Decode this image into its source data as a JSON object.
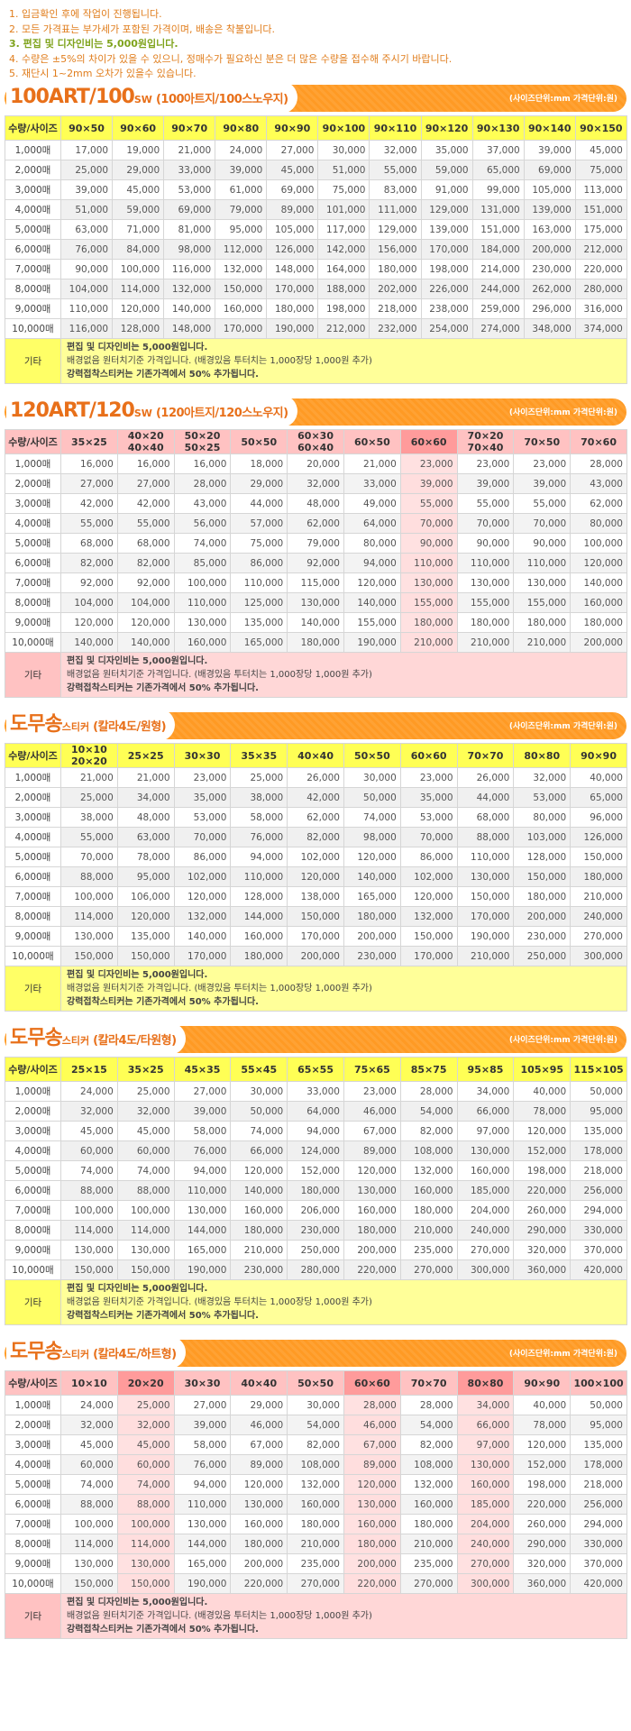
{
  "notes": [
    "1. 입금확인 후에 작업이 진행됩니다.",
    "2. 모든 가격표는 부가세가 포함된 가격이며, 배송은 착불입니다.",
    "3. 편집 및 디자인비는 5,000원입니다.",
    "4. 수량은 ±5%의 차이가 있을 수 있으니, 정매수가 필요하신 분은 더 많은 수량을 접수해 주시기 바랍니다.",
    "5. 재단시 1~2mm 오차가 있을수 있습니다."
  ],
  "sections": [
    {
      "title_big": "100ART/100",
      "title_small": "SW",
      "title_sub": "(100아트지/100스노우지)",
      "unit": "(사이즈단위:mm 가격단위:원)",
      "corner": "수량/사이즈",
      "sizes": [
        "90×50",
        "90×60",
        "90×70",
        "90×80",
        "90×90",
        "90×100",
        "90×110",
        "90×120",
        "90×130",
        "90×140",
        "90×150"
      ],
      "qty": [
        "1,000매",
        "2,000매",
        "3,000매",
        "4,000매",
        "5,000매",
        "6,000매",
        "7,000매",
        "8,000매",
        "9,000매",
        "10,000매"
      ],
      "rows": [
        [
          "17,000",
          "19,000",
          "21,000",
          "24,000",
          "27,000",
          "30,000",
          "32,000",
          "35,000",
          "37,000",
          "39,000",
          "45,000"
        ],
        [
          "25,000",
          "29,000",
          "33,000",
          "39,000",
          "45,000",
          "51,000",
          "55,000",
          "59,000",
          "65,000",
          "69,000",
          "75,000"
        ],
        [
          "39,000",
          "45,000",
          "53,000",
          "61,000",
          "69,000",
          "75,000",
          "83,000",
          "91,000",
          "99,000",
          "105,000",
          "113,000"
        ],
        [
          "51,000",
          "59,000",
          "69,000",
          "79,000",
          "89,000",
          "101,000",
          "111,000",
          "129,000",
          "131,000",
          "139,000",
          "151,000"
        ],
        [
          "63,000",
          "71,000",
          "81,000",
          "95,000",
          "105,000",
          "117,000",
          "129,000",
          "139,000",
          "151,000",
          "163,000",
          "175,000"
        ],
        [
          "76,000",
          "84,000",
          "98,000",
          "112,000",
          "126,000",
          "142,000",
          "156,000",
          "170,000",
          "184,000",
          "200,000",
          "212,000"
        ],
        [
          "90,000",
          "100,000",
          "116,000",
          "132,000",
          "148,000",
          "164,000",
          "180,000",
          "198,000",
          "214,000",
          "230,000",
          "220,000"
        ],
        [
          "104,000",
          "114,000",
          "132,000",
          "150,000",
          "170,000",
          "188,000",
          "202,000",
          "226,000",
          "244,000",
          "262,000",
          "280,000"
        ],
        [
          "110,000",
          "120,000",
          "140,000",
          "160,000",
          "180,000",
          "198,000",
          "218,000",
          "238,000",
          "259,000",
          "296,000",
          "316,000"
        ],
        [
          "116,000",
          "128,000",
          "148,000",
          "170,000",
          "190,000",
          "212,000",
          "232,000",
          "254,000",
          "274,000",
          "348,000",
          "374,000"
        ]
      ],
      "etc_label": "기타",
      "etc_lines": [
        "편집 및 디자인비는 5,000원입니다.",
        "배경없음 원터치기준 가격입니다. (배경있음 투터치는 1,000장당 1,000원 추가)",
        "강력접착스티커는 기존가격에서 50% 추가됩니다."
      ]
    },
    {
      "title_big": "120ART/120",
      "title_small": "SW",
      "title_sub": "(120아트지/120스노우지)",
      "unit": "(사이즈단위:mm 가격단위:원)",
      "corner": "수량/사이즈",
      "sizes": [
        "35×25",
        "40×20\n40×40",
        "50×20\n50×25",
        "50×50",
        "60×30\n60×40",
        "60×50",
        "60×60",
        "70×20\n70×40",
        "70×50",
        "70×60"
      ],
      "qty": [
        "1,000매",
        "2,000매",
        "3,000매",
        "4,000매",
        "5,000매",
        "6,000매",
        "7,000매",
        "8,000매",
        "9,000매",
        "10,000매"
      ],
      "rows": [
        [
          "16,000",
          "16,000",
          "16,000",
          "18,000",
          "20,000",
          "21,000",
          "23,000",
          "23,000",
          "23,000",
          "28,000"
        ],
        [
          "27,000",
          "27,000",
          "28,000",
          "29,000",
          "32,000",
          "33,000",
          "39,000",
          "39,000",
          "39,000",
          "43,000"
        ],
        [
          "42,000",
          "42,000",
          "43,000",
          "44,000",
          "48,000",
          "49,000",
          "55,000",
          "55,000",
          "55,000",
          "62,000"
        ],
        [
          "55,000",
          "55,000",
          "56,000",
          "57,000",
          "62,000",
          "64,000",
          "70,000",
          "70,000",
          "70,000",
          "80,000"
        ],
        [
          "68,000",
          "68,000",
          "74,000",
          "75,000",
          "79,000",
          "80,000",
          "90,000",
          "90,000",
          "90,000",
          "100,000"
        ],
        [
          "82,000",
          "82,000",
          "85,000",
          "86,000",
          "92,000",
          "94,000",
          "110,000",
          "110,000",
          "110,000",
          "120,000"
        ],
        [
          "92,000",
          "92,000",
          "100,000",
          "110,000",
          "115,000",
          "120,000",
          "130,000",
          "130,000",
          "130,000",
          "140,000"
        ],
        [
          "104,000",
          "104,000",
          "110,000",
          "125,000",
          "130,000",
          "140,000",
          "155,000",
          "155,000",
          "155,000",
          "160,000"
        ],
        [
          "120,000",
          "120,000",
          "130,000",
          "135,000",
          "140,000",
          "155,000",
          "180,000",
          "180,000",
          "180,000",
          "180,000"
        ],
        [
          "140,000",
          "140,000",
          "160,000",
          "165,000",
          "180,000",
          "190,000",
          "210,000",
          "210,000",
          "210,000",
          "200,000"
        ]
      ],
      "etc_label": "기타",
      "etc_lines": [
        "편집 및 디자인비는 5,000원입니다.",
        "배경없음 원터치기준 가격입니다. (배경있음 투터치는 1,000장당 1,000원 추가)",
        "강력접착스티커는 기존가격에서 50% 추가됩니다."
      ]
    },
    {
      "title_big": "도무송",
      "title_small": "스티커",
      "title_sub": "(칼라4도/원형)",
      "unit": "(사이즈단위:mm 가격단위:원)",
      "corner": "수량/사이즈",
      "sizes": [
        "10×10\n20×20",
        "25×25",
        "30×30",
        "35×35",
        "40×40",
        "50×50",
        "60×60",
        "70×70",
        "80×80",
        "90×90"
      ],
      "qty": [
        "1,000매",
        "2,000매",
        "3,000매",
        "4,000매",
        "5,000매",
        "6,000매",
        "7,000매",
        "8,000매",
        "9,000매",
        "10,000매"
      ],
      "rows": [
        [
          "21,000",
          "21,000",
          "23,000",
          "25,000",
          "26,000",
          "30,000",
          "23,000",
          "26,000",
          "32,000",
          "40,000"
        ],
        [
          "25,000",
          "34,000",
          "35,000",
          "38,000",
          "42,000",
          "50,000",
          "35,000",
          "44,000",
          "53,000",
          "65,000"
        ],
        [
          "38,000",
          "48,000",
          "53,000",
          "58,000",
          "62,000",
          "74,000",
          "53,000",
          "68,000",
          "80,000",
          "96,000"
        ],
        [
          "55,000",
          "63,000",
          "70,000",
          "76,000",
          "82,000",
          "98,000",
          "70,000",
          "88,000",
          "103,000",
          "126,000"
        ],
        [
          "70,000",
          "78,000",
          "86,000",
          "94,000",
          "102,000",
          "120,000",
          "86,000",
          "110,000",
          "128,000",
          "150,000"
        ],
        [
          "88,000",
          "95,000",
          "102,000",
          "110,000",
          "120,000",
          "140,000",
          "102,000",
          "130,000",
          "150,000",
          "180,000"
        ],
        [
          "100,000",
          "106,000",
          "120,000",
          "128,000",
          "138,000",
          "165,000",
          "120,000",
          "150,000",
          "180,000",
          "210,000"
        ],
        [
          "114,000",
          "120,000",
          "132,000",
          "144,000",
          "150,000",
          "180,000",
          "132,000",
          "170,000",
          "200,000",
          "240,000"
        ],
        [
          "130,000",
          "135,000",
          "140,000",
          "160,000",
          "170,000",
          "200,000",
          "150,000",
          "190,000",
          "230,000",
          "270,000"
        ],
        [
          "150,000",
          "150,000",
          "170,000",
          "180,000",
          "200,000",
          "230,000",
          "170,000",
          "210,000",
          "250,000",
          "300,000"
        ]
      ],
      "etc_label": "기타",
      "etc_lines": [
        "편집 및 디자인비는 5,000원입니다.",
        "배경없음 원터치기준 가격입니다. (배경있음 투터치는 1,000장당 1,000원 추가)",
        "강력접착스티커는 기존가격에서 50% 추가됩니다."
      ]
    },
    {
      "title_big": "도무송",
      "title_small": "스티커",
      "title_sub": "(칼라4도/타원형)",
      "unit": "(사이즈단위:mm 가격단위:원)",
      "corner": "수량/사이즈",
      "sizes": [
        "25×15",
        "35×25",
        "45×35",
        "55×45",
        "65×55",
        "75×65",
        "85×75",
        "95×85",
        "105×95",
        "115×105"
      ],
      "qty": [
        "1,000매",
        "2,000매",
        "3,000매",
        "4,000매",
        "5,000매",
        "6,000매",
        "7,000매",
        "8,000매",
        "9,000매",
        "10,000매"
      ],
      "rows": [
        [
          "24,000",
          "25,000",
          "27,000",
          "30,000",
          "33,000",
          "23,000",
          "28,000",
          "34,000",
          "40,000",
          "50,000"
        ],
        [
          "32,000",
          "32,000",
          "39,000",
          "50,000",
          "64,000",
          "46,000",
          "54,000",
          "66,000",
          "78,000",
          "95,000"
        ],
        [
          "45,000",
          "45,000",
          "58,000",
          "74,000",
          "94,000",
          "67,000",
          "82,000",
          "97,000",
          "120,000",
          "135,000"
        ],
        [
          "60,000",
          "60,000",
          "76,000",
          "66,000",
          "124,000",
          "89,000",
          "108,000",
          "130,000",
          "152,000",
          "178,000"
        ],
        [
          "74,000",
          "74,000",
          "94,000",
          "120,000",
          "152,000",
          "120,000",
          "132,000",
          "160,000",
          "198,000",
          "218,000"
        ],
        [
          "88,000",
          "88,000",
          "110,000",
          "140,000",
          "180,000",
          "130,000",
          "160,000",
          "185,000",
          "220,000",
          "256,000"
        ],
        [
          "100,000",
          "100,000",
          "130,000",
          "160,000",
          "206,000",
          "160,000",
          "180,000",
          "204,000",
          "260,000",
          "294,000"
        ],
        [
          "114,000",
          "114,000",
          "144,000",
          "180,000",
          "230,000",
          "180,000",
          "210,000",
          "240,000",
          "290,000",
          "330,000"
        ],
        [
          "130,000",
          "130,000",
          "165,000",
          "210,000",
          "250,000",
          "200,000",
          "235,000",
          "270,000",
          "320,000",
          "370,000"
        ],
        [
          "150,000",
          "150,000",
          "190,000",
          "230,000",
          "280,000",
          "220,000",
          "270,000",
          "300,000",
          "360,000",
          "420,000"
        ]
      ],
      "etc_label": "기타",
      "etc_lines": [
        "편집 및 디자인비는 5,000원입니다.",
        "배경없음 원터치기준 가격입니다. (배경있음 투터치는 1,000장당 1,000원 추가)",
        "강력접착스티커는 기존가격에서 50% 추가됩니다."
      ]
    },
    {
      "title_big": "도무송",
      "title_small": "스티커",
      "title_sub": "(칼라4도/하트형)",
      "unit": "(사이즈단위:mm 가격단위:원)",
      "corner": "수량/사이즈",
      "sizes": [
        "10×10",
        "20×20",
        "30×30",
        "40×40",
        "50×50",
        "60×60",
        "70×70",
        "80×80",
        "90×90",
        "100×100"
      ],
      "qty": [
        "1,000매",
        "2,000매",
        "3,000매",
        "4,000매",
        "5,000매",
        "6,000매",
        "7,000매",
        "8,000매",
        "9,000매",
        "10,000매"
      ],
      "rows": [
        [
          "24,000",
          "25,000",
          "27,000",
          "29,000",
          "30,000",
          "28,000",
          "28,000",
          "34,000",
          "40,000",
          "50,000"
        ],
        [
          "32,000",
          "32,000",
          "39,000",
          "46,000",
          "54,000",
          "46,000",
          "54,000",
          "66,000",
          "78,000",
          "95,000"
        ],
        [
          "45,000",
          "45,000",
          "58,000",
          "67,000",
          "82,000",
          "67,000",
          "82,000",
          "97,000",
          "120,000",
          "135,000"
        ],
        [
          "60,000",
          "60,000",
          "76,000",
          "89,000",
          "108,000",
          "89,000",
          "108,000",
          "130,000",
          "152,000",
          "178,000"
        ],
        [
          "74,000",
          "74,000",
          "94,000",
          "120,000",
          "132,000",
          "120,000",
          "132,000",
          "160,000",
          "198,000",
          "218,000"
        ],
        [
          "88,000",
          "88,000",
          "110,000",
          "130,000",
          "160,000",
          "130,000",
          "160,000",
          "185,000",
          "220,000",
          "256,000"
        ],
        [
          "100,000",
          "100,000",
          "130,000",
          "160,000",
          "180,000",
          "160,000",
          "180,000",
          "204,000",
          "260,000",
          "294,000"
        ],
        [
          "114,000",
          "114,000",
          "144,000",
          "180,000",
          "210,000",
          "180,000",
          "210,000",
          "240,000",
          "290,000",
          "330,000"
        ],
        [
          "130,000",
          "130,000",
          "165,000",
          "200,000",
          "235,000",
          "200,000",
          "235,000",
          "270,000",
          "320,000",
          "370,000"
        ],
        [
          "150,000",
          "150,000",
          "190,000",
          "220,000",
          "270,000",
          "220,000",
          "270,000",
          "300,000",
          "360,000",
          "420,000"
        ]
      ],
      "etc_label": "기타",
      "etc_lines": [
        "편집 및 디자인비는 5,000원입니다.",
        "배경없음 원터치기준 가격입니다. (배경있음 투터치는 1,000장당 1,000원 추가)",
        "강력접착스티커는 기존가격에서 50% 추가됩니다."
      ]
    }
  ]
}
